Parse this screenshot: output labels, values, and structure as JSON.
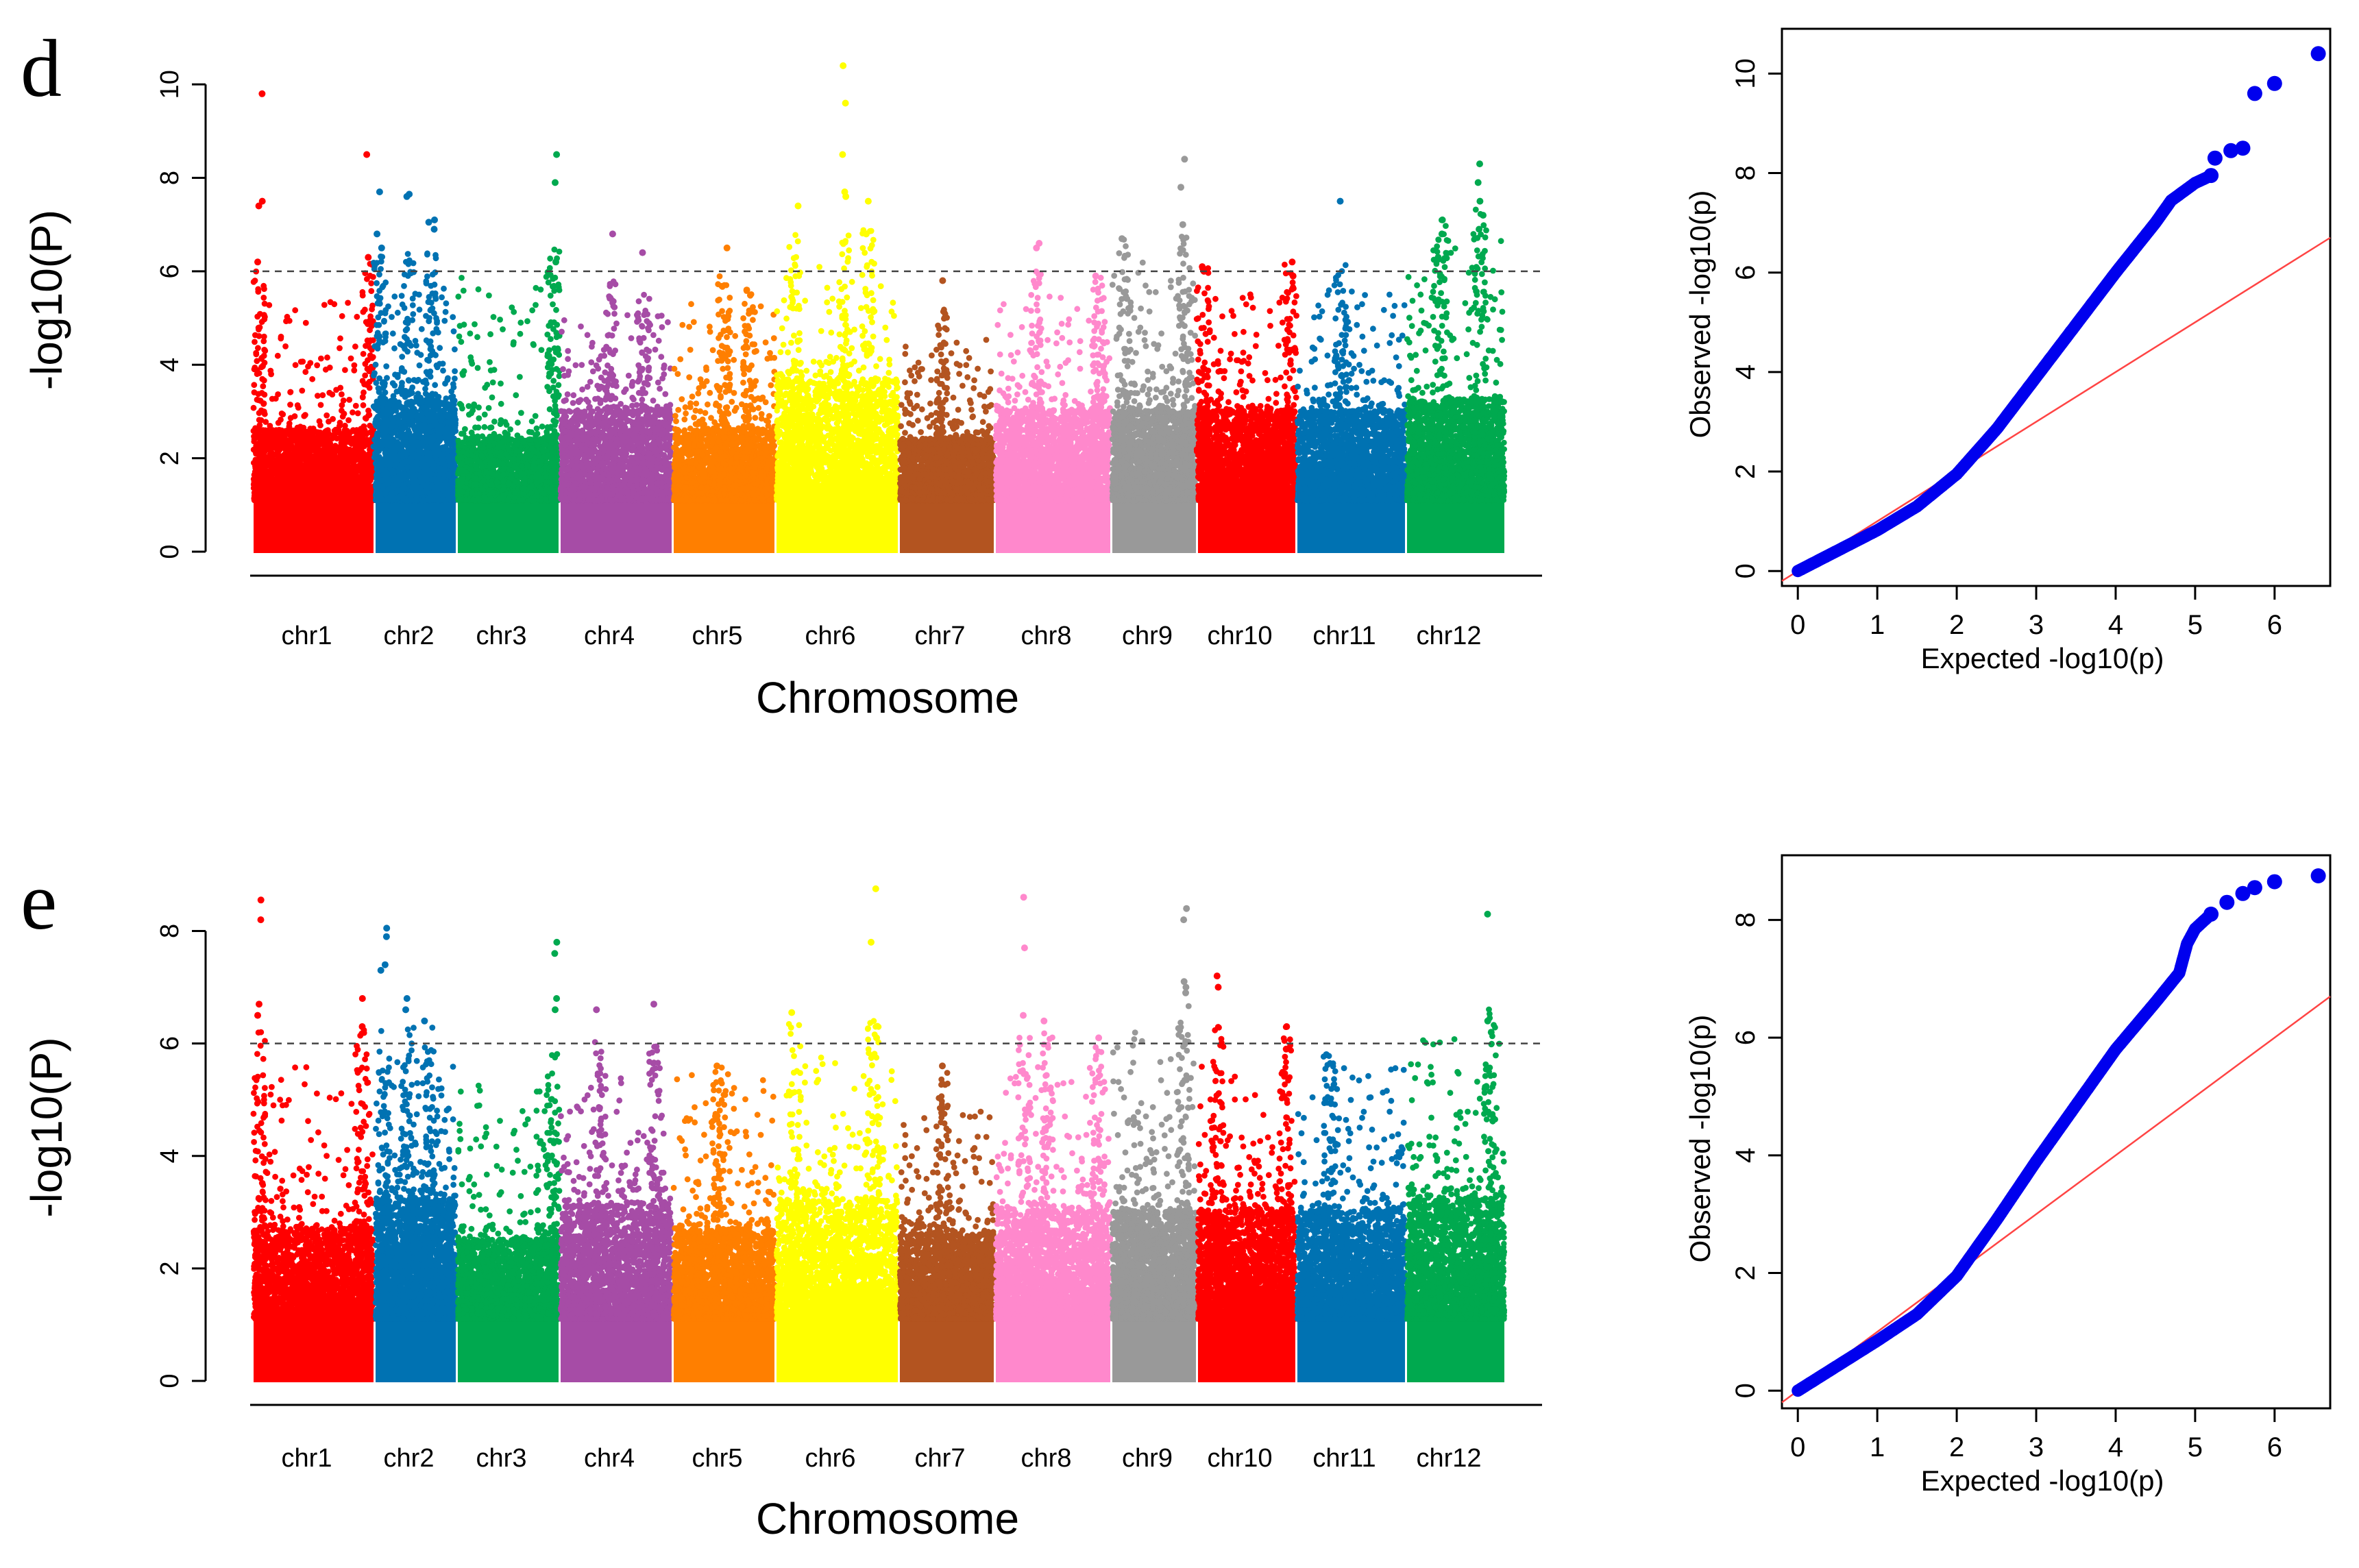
{
  "panels": [
    {
      "letter": "d",
      "manhattan": {
        "type": "scatter",
        "subtype": "manhattan",
        "xlabel": "Chromosome",
        "ylabel": "-log10(P)",
        "ylim": [
          0,
          11
        ],
        "yticks": [
          0,
          2,
          4,
          6,
          8,
          10
        ],
        "threshold": 6,
        "grid": false,
        "chromosomes": [
          {
            "name": "chr1",
            "color": "#ff0000",
            "background_max": 2.6,
            "spread_max": 5.6,
            "peaks": [
              {
                "pos": 0.05,
                "values": [
                  9.8,
                  7.5,
                  7.4,
                  6.2
                ]
              },
              {
                "pos": 0.95,
                "values": [
                  8.5,
                  6.3
                ]
              }
            ]
          },
          {
            "name": "chr2",
            "color": "#0072b2",
            "background_max": 3.2,
            "spread_max": 5.8,
            "peaks": [
              {
                "pos": 0.05,
                "values": [
                  7.7,
                  6.8,
                  6.5
                ]
              },
              {
                "pos": 0.4,
                "values": [
                  7.65,
                  7.6
                ]
              },
              {
                "pos": 0.7,
                "values": [
                  7.1,
                  7.05,
                  6.9
                ]
              }
            ]
          },
          {
            "name": "chr3",
            "color": "#00a94f",
            "background_max": 2.4,
            "spread_max": 5.9,
            "peaks": [
              {
                "pos": 0.95,
                "values": [
                  8.5,
                  7.9,
                  6.2
                ]
              }
            ]
          },
          {
            "name": "chr4",
            "color": "#a64ca6",
            "background_max": 3.0,
            "spread_max": 5.2,
            "peaks": [
              {
                "pos": 0.45,
                "values": [
                  6.8
                ]
              },
              {
                "pos": 0.75,
                "values": [
                  6.4
                ]
              }
            ]
          },
          {
            "name": "chr5",
            "color": "#ff7f00",
            "background_max": 2.6,
            "spread_max": 5.3,
            "peaks": [
              {
                "pos": 0.5,
                "values": [
                  6.5
                ]
              },
              {
                "pos": 0.75,
                "values": [
                  5.6
                ]
              }
            ]
          },
          {
            "name": "chr6",
            "color": "#ffff00",
            "background_max": 3.6,
            "spread_max": 6.3,
            "peaks": [
              {
                "pos": 0.15,
                "values": [
                  7.4
                ]
              },
              {
                "pos": 0.55,
                "values": [
                  10.4,
                  9.6,
                  8.5,
                  7.7,
                  7.6
                ]
              },
              {
                "pos": 0.75,
                "values": [
                  7.5,
                  6.8
                ]
              }
            ]
          },
          {
            "name": "chr7",
            "color": "#b35420",
            "background_max": 2.4,
            "spread_max": 4.6,
            "peaks": [
              {
                "pos": 0.45,
                "values": [
                  5.8
                ]
              }
            ]
          },
          {
            "name": "chr8",
            "color": "#ff88cc",
            "background_max": 3.0,
            "spread_max": 5.5,
            "peaks": [
              {
                "pos": 0.35,
                "values": [
                  6.6,
                  6.5
                ]
              },
              {
                "pos": 0.9,
                "values": [
                  5.9
                ]
              }
            ]
          },
          {
            "name": "chr9",
            "color": "#999999",
            "background_max": 3.0,
            "spread_max": 6.2,
            "peaks": [
              {
                "pos": 0.85,
                "values": [
                  8.4,
                  7.8,
                  7.0
                ]
              },
              {
                "pos": 0.15,
                "values": [
                  6.7
                ]
              }
            ]
          },
          {
            "name": "chr10",
            "color": "#ff0000",
            "background_max": 3.0,
            "spread_max": 5.6,
            "peaks": [
              {
                "pos": 0.05,
                "values": [
                  6.1,
                  6.0
                ]
              },
              {
                "pos": 0.95,
                "values": [
                  6.2,
                  5.9
                ]
              }
            ]
          },
          {
            "name": "chr11",
            "color": "#0072b2",
            "background_max": 3.0,
            "spread_max": 5.6,
            "peaks": [
              {
                "pos": 0.4,
                "values": [
                  7.5
                ]
              }
            ]
          },
          {
            "name": "chr12",
            "color": "#00a94f",
            "background_max": 3.2,
            "spread_max": 6.8,
            "peaks": [
              {
                "pos": 0.75,
                "values": [
                  8.3,
                  7.9,
                  7.5,
                  7.2,
                  6.9
                ]
              },
              {
                "pos": 0.35,
                "values": [
                  7.1,
                  6.8,
                  6.3
                ]
              }
            ]
          }
        ]
      },
      "qq": {
        "type": "scatter",
        "subtype": "qq",
        "xlabel": "Expected -log10(p)",
        "ylabel": "Observed -log10(p)",
        "xlim": [
          -0.2,
          6.7
        ],
        "ylim": [
          -0.3,
          10.9
        ],
        "xticks": [
          0,
          1,
          2,
          3,
          4,
          5,
          6
        ],
        "yticks": [
          0,
          2,
          4,
          6,
          8,
          10
        ],
        "point_color": "#0000ee",
        "line_color": "#ff4444",
        "curve": [
          [
            0,
            0
          ],
          [
            1,
            0.82
          ],
          [
            1.5,
            1.3
          ],
          [
            2,
            1.95
          ],
          [
            2.5,
            2.85
          ],
          [
            3,
            3.9
          ],
          [
            3.5,
            4.95
          ],
          [
            4,
            6.0
          ],
          [
            4.3,
            6.6
          ],
          [
            4.5,
            7.0
          ],
          [
            4.7,
            7.45
          ],
          [
            5,
            7.8
          ],
          [
            5.2,
            7.95
          ],
          [
            5.25,
            8.3
          ],
          [
            5.45,
            8.45
          ],
          [
            5.6,
            8.5
          ],
          [
            5.75,
            9.6
          ],
          [
            6.0,
            9.8
          ],
          [
            6.55,
            10.4
          ]
        ]
      }
    },
    {
      "letter": "e",
      "manhattan": {
        "type": "scatter",
        "subtype": "manhattan",
        "xlabel": "Chromosome",
        "ylabel": "-log10(P)",
        "ylim": [
          0,
          9.2
        ],
        "yticks": [
          0,
          2,
          4,
          6,
          8
        ],
        "threshold": 6,
        "grid": false,
        "chromosomes": [
          {
            "name": "chr1",
            "color": "#ff0000",
            "background_max": 2.7,
            "spread_max": 5.7,
            "peaks": [
              {
                "pos": 0.05,
                "values": [
                  8.55,
                  8.2,
                  6.7,
                  6.5
                ]
              },
              {
                "pos": 0.9,
                "values": [
                  6.8,
                  6.3
                ]
              }
            ]
          },
          {
            "name": "chr2",
            "color": "#0072b2",
            "background_max": 3.2,
            "spread_max": 5.7,
            "peaks": [
              {
                "pos": 0.1,
                "values": [
                  8.05,
                  7.9,
                  7.4,
                  7.3
                ]
              },
              {
                "pos": 0.4,
                "values": [
                  6.8,
                  6.6
                ]
              },
              {
                "pos": 0.65,
                "values": [
                  6.4
                ]
              }
            ]
          },
          {
            "name": "chr3",
            "color": "#00a94f",
            "background_max": 2.5,
            "spread_max": 5.3,
            "peaks": [
              {
                "pos": 0.95,
                "values": [
                  7.8,
                  7.6,
                  6.8,
                  6.6
                ]
              }
            ]
          },
          {
            "name": "chr4",
            "color": "#a64ca6",
            "background_max": 3.1,
            "spread_max": 5.5,
            "peaks": [
              {
                "pos": 0.35,
                "values": [
                  6.6
                ]
              },
              {
                "pos": 0.85,
                "values": [
                  6.7
                ]
              }
            ]
          },
          {
            "name": "chr5",
            "color": "#ff7f00",
            "background_max": 2.7,
            "spread_max": 5.5,
            "peaks": [
              {
                "pos": 0.45,
                "values": [
                  5.6
                ]
              }
            ]
          },
          {
            "name": "chr6",
            "color": "#ffff00",
            "background_max": 3.2,
            "spread_max": 5.8,
            "peaks": [
              {
                "pos": 0.15,
                "values": [
                  6.55
                ]
              },
              {
                "pos": 0.8,
                "values": [
                  8.75,
                  7.8,
                  6.1
                ]
              }
            ]
          },
          {
            "name": "chr7",
            "color": "#b35420",
            "background_max": 2.6,
            "spread_max": 4.9,
            "peaks": [
              {
                "pos": 0.45,
                "values": [
                  5.6
                ]
              }
            ]
          },
          {
            "name": "chr8",
            "color": "#ff88cc",
            "background_max": 3.0,
            "spread_max": 5.6,
            "peaks": [
              {
                "pos": 0.25,
                "values": [
                  8.6,
                  7.7,
                  6.5
                ]
              },
              {
                "pos": 0.45,
                "values": [
                  6.4
                ]
              },
              {
                "pos": 0.9,
                "values": [
                  6.1
                ]
              }
            ]
          },
          {
            "name": "chr9",
            "color": "#999999",
            "background_max": 3.0,
            "spread_max": 6.2,
            "peaks": [
              {
                "pos": 0.85,
                "values": [
                  8.4,
                  8.2,
                  7.1,
                  7.0,
                  6.9
                ]
              }
            ]
          },
          {
            "name": "chr10",
            "color": "#ff0000",
            "background_max": 3.0,
            "spread_max": 5.7,
            "peaks": [
              {
                "pos": 0.2,
                "values": [
                  7.2,
                  7.0
                ]
              },
              {
                "pos": 0.9,
                "values": [
                  6.3,
                  5.9
                ]
              }
            ]
          },
          {
            "name": "chr11",
            "color": "#0072b2",
            "background_max": 3.0,
            "spread_max": 5.6,
            "peaks": [
              {
                "pos": 0.3,
                "values": [
                  5.8
                ]
              }
            ]
          },
          {
            "name": "chr12",
            "color": "#00a94f",
            "background_max": 3.2,
            "spread_max": 6.1,
            "peaks": [
              {
                "pos": 0.85,
                "values": [
                  8.3,
                  6.4,
                  6.2
                ]
              }
            ]
          }
        ]
      },
      "qq": {
        "type": "scatter",
        "subtype": "qq",
        "xlabel": "Expected -log10(p)",
        "ylabel": "Observed -log10(p)",
        "xlim": [
          -0.2,
          6.7
        ],
        "ylim": [
          -0.3,
          9.1
        ],
        "xticks": [
          0,
          1,
          2,
          3,
          4,
          5,
          6
        ],
        "yticks": [
          0,
          2,
          4,
          6,
          8
        ],
        "point_color": "#0000ee",
        "line_color": "#ff4444",
        "curve": [
          [
            0,
            0
          ],
          [
            1,
            0.85
          ],
          [
            1.5,
            1.3
          ],
          [
            2,
            1.95
          ],
          [
            2.5,
            2.9
          ],
          [
            3,
            3.9
          ],
          [
            3.5,
            4.85
          ],
          [
            4,
            5.8
          ],
          [
            4.5,
            6.6
          ],
          [
            4.8,
            7.1
          ],
          [
            4.9,
            7.6
          ],
          [
            5.0,
            7.85
          ],
          [
            5.2,
            8.1
          ],
          [
            5.4,
            8.3
          ],
          [
            5.6,
            8.45
          ],
          [
            5.75,
            8.55
          ],
          [
            6.0,
            8.65
          ],
          [
            6.55,
            8.75
          ]
        ]
      }
    }
  ]
}
